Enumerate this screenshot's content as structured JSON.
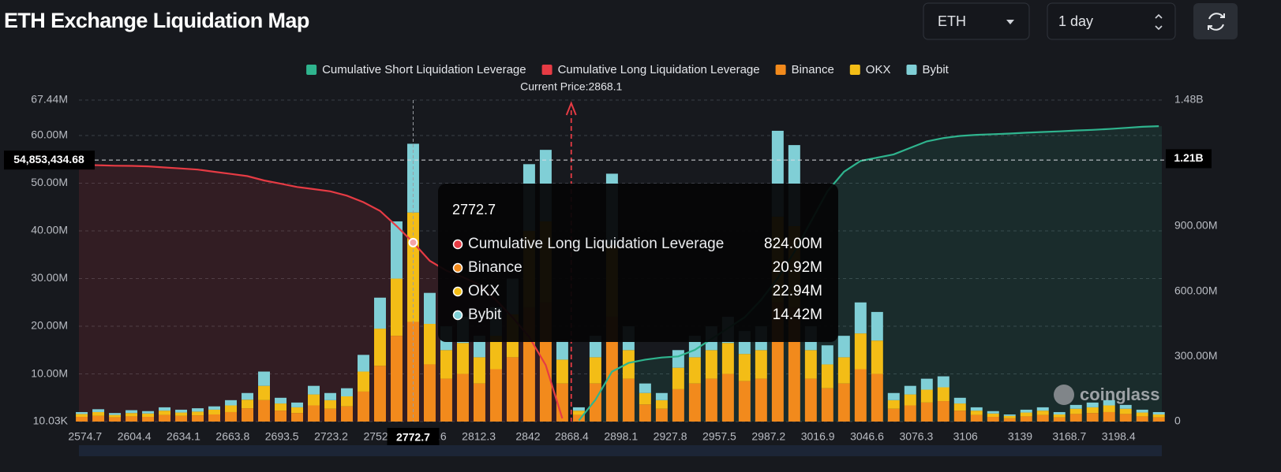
{
  "controls": {
    "coin": "ETH",
    "period": "1 day"
  },
  "chart_data": {
    "type": "bar",
    "title": "ETH Exchange Liquidation Map",
    "stacked": true,
    "x": [
      2572.7,
      2582.7,
      2592.7,
      2602.7,
      2612.7,
      2622.7,
      2632.7,
      2642.7,
      2652.7,
      2662.7,
      2672.7,
      2682.7,
      2692.7,
      2702.7,
      2712.7,
      2722.7,
      2732.7,
      2742.7,
      2752.7,
      2762.7,
      2772.7,
      2782.7,
      2792.7,
      2802.7,
      2812.7,
      2822.7,
      2832.7,
      2842.7,
      2852.7,
      2862.7,
      2872.7,
      2882.7,
      2892.7,
      2902.7,
      2912.7,
      2922.7,
      2932.7,
      2942.7,
      2952.7,
      2962.7,
      2972.7,
      2982.7,
      2992.7,
      3002.7,
      3012.7,
      3022.7,
      3032.7,
      3042.7,
      3052.7,
      3062.7,
      3072.7,
      3082.7,
      3092.7,
      3102.7,
      3112.7,
      3122.7,
      3132.7,
      3142.7,
      3152.7,
      3162.7,
      3172.7,
      3182.7,
      3192.7,
      3202.7,
      3212.7,
      3222.7
    ],
    "xlim": [
      2571,
      3224.5
    ],
    "xticks": [
      2574.7,
      2604.4,
      2634.1,
      2663.8,
      2693.5,
      2723.2,
      2752.9,
      2782.6,
      2812.3,
      2842,
      2868.4,
      2898.1,
      2927.8,
      2957.5,
      2987.2,
      3016.9,
      3046.6,
      3076.3,
      3106,
      3139,
      3168.7,
      3198.4
    ],
    "ylim": [
      10030,
      67440000
    ],
    "yticks": [
      {
        "value": 10030,
        "label": "10.03K"
      },
      {
        "value": 10000000,
        "label": "10.00M"
      },
      {
        "value": 20000000,
        "label": "20.00M"
      },
      {
        "value": 30000000,
        "label": "30.00M"
      },
      {
        "value": 40000000,
        "label": "40.00M"
      },
      {
        "value": 50000000,
        "label": "50.00M"
      },
      {
        "value": 60000000,
        "label": "60.00M"
      },
      {
        "value": 67440000,
        "label": "67.44M"
      }
    ],
    "y2lim": [
      0,
      1480000000
    ],
    "y2ticks": [
      0,
      {
        "value": 300000000,
        "label": "300.00M"
      },
      {
        "value": 600000000,
        "label": "600.00M"
      },
      {
        "value": 900000000,
        "label": "900.00M"
      },
      {
        "value": 1480000000,
        "label": "1.48B"
      }
    ],
    "grid": true,
    "series": [
      {
        "name": "Cumulative Short Liquidation Leverage",
        "type": "line",
        "axis": "y2",
        "color": "#2fb48e",
        "values": [
          null,
          null,
          null,
          null,
          null,
          null,
          null,
          null,
          null,
          null,
          null,
          null,
          null,
          null,
          null,
          null,
          null,
          null,
          null,
          null,
          null,
          null,
          null,
          null,
          null,
          null,
          null,
          null,
          null,
          null,
          5000000,
          100000000,
          230000000,
          270000000,
          285000000,
          295000000,
          300000000,
          330000000,
          380000000,
          430000000,
          480000000,
          560000000,
          660000000,
          780000000,
          920000000,
          1060000000,
          1150000000,
          1200000000,
          1215000000,
          1230000000,
          1260000000,
          1290000000,
          1305000000,
          1315000000,
          1320000000,
          1323000000,
          1326000000,
          1330000000,
          1333000000,
          1336000000,
          1340000000,
          1343000000,
          1347000000,
          1352000000,
          1357000000,
          1360000000
        ]
      },
      {
        "name": "Cumulative Long Liquidation Leverage",
        "type": "line",
        "axis": "y2",
        "color": "#e63b44",
        "values": [
          1182000000,
          1180000000,
          1178000000,
          1177000000,
          1175000000,
          1170000000,
          1165000000,
          1160000000,
          1150000000,
          1140000000,
          1130000000,
          1110000000,
          1095000000,
          1080000000,
          1070000000,
          1060000000,
          1040000000,
          1010000000,
          970000000,
          900000000,
          824000000,
          740000000,
          695000000,
          665000000,
          630000000,
          560000000,
          480000000,
          390000000,
          260000000,
          15000000,
          null,
          null,
          null,
          null,
          null,
          null,
          null,
          null,
          null,
          null,
          null,
          null,
          null,
          null,
          null,
          null,
          null,
          null,
          null,
          null,
          null,
          null,
          null,
          null,
          null,
          null,
          null,
          null,
          null,
          null,
          null,
          null,
          null,
          null,
          null,
          null
        ]
      },
      {
        "name": "Binance",
        "type": "bar",
        "color": "#f28a1c",
        "values": [
          1000000,
          1200000,
          900000,
          1100000,
          1000000,
          1400000,
          1200000,
          1300000,
          1500000,
          2000000,
          2800000,
          4500000,
          2300000,
          1800000,
          3400000,
          2700000,
          3200000,
          6300000,
          11700000,
          18000000,
          20920000,
          12000000,
          9000000,
          10000000,
          8000000,
          11000000,
          13500000,
          24000000,
          25000000,
          8000000,
          1400000,
          8000000,
          22000000,
          9000000,
          3600000,
          2700000,
          6800000,
          8000000,
          9000000,
          10000000,
          8500000,
          9000000,
          25000000,
          24000000,
          9000000,
          7000000,
          8000000,
          11000000,
          10000000,
          2700000,
          3400000,
          4000000,
          4300000,
          2300000,
          1400000,
          1000000,
          700000,
          1100000,
          1400000,
          900000,
          1600000,
          1800000,
          2000000,
          1600000,
          1100000,
          900000
        ]
      },
      {
        "name": "OKX",
        "type": "bar",
        "color": "#f3bd16",
        "values": [
          600000,
          800000,
          500000,
          700000,
          700000,
          900000,
          700000,
          800000,
          1000000,
          1400000,
          1800000,
          3000000,
          1500000,
          1200000,
          2300000,
          1800000,
          2100000,
          4200000,
          7800000,
          12000000,
          22940000,
          8500000,
          6000000,
          6500000,
          5500000,
          7000000,
          9000000,
          16000000,
          17000000,
          5000000,
          900000,
          5500000,
          15000000,
          6000000,
          2400000,
          1800000,
          4500000,
          5500000,
          6000000,
          6500000,
          5700000,
          6000000,
          18000000,
          17000000,
          6000000,
          5000000,
          5500000,
          7500000,
          7000000,
          1800000,
          2300000,
          2700000,
          2900000,
          1500000,
          900000,
          700000,
          500000,
          800000,
          900000,
          600000,
          1100000,
          1200000,
          1400000,
          1100000,
          800000,
          600000
        ]
      },
      {
        "name": "Bybit",
        "type": "bar",
        "color": "#80cfd6",
        "values": [
          400000,
          600000,
          400000,
          600000,
          500000,
          700000,
          600000,
          700000,
          700000,
          1100000,
          1400000,
          3000000,
          1200000,
          1000000,
          1800000,
          1500000,
          1700000,
          3500000,
          6500000,
          12000000,
          14420000,
          6500000,
          5000000,
          5500000,
          4500000,
          6000000,
          7500000,
          14000000,
          15000000,
          4000000,
          700000,
          4500000,
          15000000,
          5000000,
          2000000,
          1500000,
          3700000,
          4500000,
          5000000,
          5500000,
          4800000,
          5000000,
          18000000,
          17000000,
          5000000,
          4000000,
          4500000,
          6500000,
          6000000,
          1500000,
          1800000,
          2300000,
          2300000,
          1200000,
          700000,
          500000,
          300000,
          600000,
          700000,
          500000,
          800000,
          1000000,
          1100000,
          800000,
          600000,
          500000
        ]
      }
    ],
    "current_price": 2868.1,
    "current_price_label": "Current Price:2868.1",
    "crosshair": {
      "x": 2772.7,
      "y": {
        "value": 54853434.68,
        "label": "54,853,434.68"
      },
      "y2": {
        "value": 1210000000,
        "label": "1.21B"
      }
    },
    "tooltip": {
      "rows": [
        {
          "name": "Cumulative Long Liquidation Leverage",
          "color": "#e63b44",
          "label": "824.00M"
        },
        {
          "name": "Binance",
          "color": "#f28a1c",
          "label": "20.92M"
        },
        {
          "name": "OKX",
          "color": "#f3bd16",
          "label": "22.94M"
        },
        {
          "name": "Bybit",
          "color": "#80cfd6",
          "label": "14.42M"
        }
      ]
    },
    "watermark": "coinglass"
  }
}
